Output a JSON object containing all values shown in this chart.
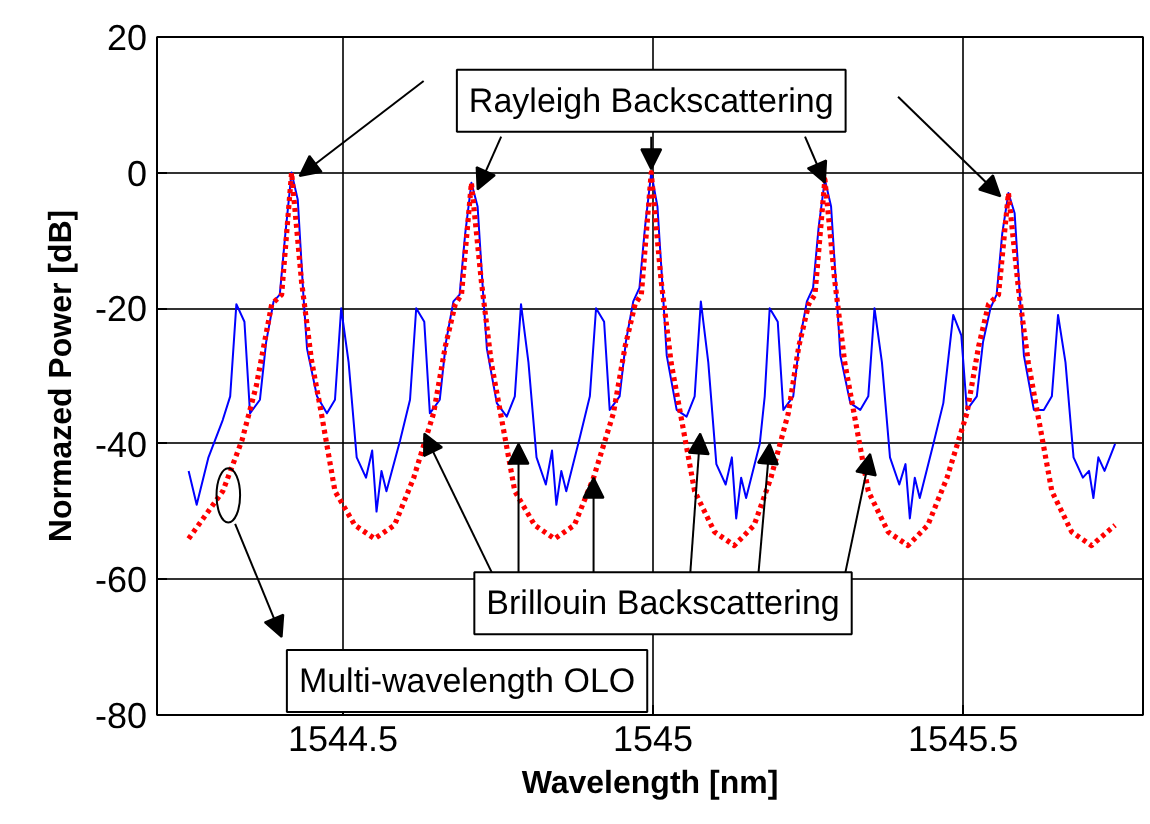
{
  "chart_data": {
    "type": "line",
    "xlabel": "Wavelength [nm]",
    "ylabel": "Normazed Power [dB]",
    "xlim": [
      1544.2,
      1545.79
    ],
    "ylim": [
      -80,
      20
    ],
    "xticks": [
      1544.5,
      1545,
      1545.5
    ],
    "yticks": [
      -80,
      -60,
      -40,
      -20,
      0,
      20
    ],
    "grid": true,
    "annotations": [
      {
        "text": "Rayleigh Backscattering",
        "x": 1544.997,
        "y": 0
      },
      {
        "text": "Brillouin Backscattering",
        "x": 1544.904,
        "y": -45
      },
      "Multi-wavelength OLO"
    ],
    "series": [
      {
        "color": "#0000ff",
        "line_style": "solid",
        "x": [
          1544.251,
          1544.264,
          1544.283,
          1544.306,
          1544.318,
          1544.328,
          1544.341,
          1544.35,
          1544.366,
          1544.376,
          1544.388,
          1544.398,
          1544.407,
          1544.417,
          1544.427,
          1544.436,
          1544.442,
          1544.458,
          1544.474,
          1544.487,
          1544.497,
          1544.509,
          1544.522,
          1544.537,
          1544.547,
          1544.554,
          1544.562,
          1544.57,
          1544.592,
          1544.608,
          1544.618,
          1544.631,
          1544.64,
          1544.656,
          1544.666,
          1544.678,
          1544.688,
          1544.697,
          1544.707,
          1544.717,
          1544.726,
          1544.732,
          1544.748,
          1544.764,
          1544.777,
          1544.787,
          1544.799,
          1544.812,
          1544.827,
          1544.837,
          1544.844,
          1544.852,
          1544.86,
          1544.882,
          1544.898,
          1544.908,
          1544.921,
          1544.93,
          1544.946,
          1544.956,
          1544.968,
          1544.978,
          1544.987,
          1544.997,
          1545.007,
          1545.016,
          1545.022,
          1545.038,
          1545.054,
          1545.067,
          1545.077,
          1545.089,
          1545.102,
          1545.117,
          1545.127,
          1545.134,
          1545.142,
          1545.15,
          1545.172,
          1545.18,
          1545.188,
          1545.201,
          1545.21,
          1545.226,
          1545.236,
          1545.248,
          1545.258,
          1545.267,
          1545.277,
          1545.287,
          1545.296,
          1545.302,
          1545.318,
          1545.334,
          1545.347,
          1545.357,
          1545.369,
          1545.382,
          1545.397,
          1545.407,
          1545.414,
          1545.422,
          1545.43,
          1545.452,
          1545.468,
          1545.484,
          1545.497,
          1545.506,
          1545.522,
          1545.532,
          1545.544,
          1545.554,
          1545.563,
          1545.573,
          1545.583,
          1545.592,
          1545.598,
          1545.614,
          1545.63,
          1545.643,
          1545.653,
          1545.665,
          1545.678,
          1545.693,
          1545.703,
          1545.71,
          1545.718,
          1545.728,
          1545.745
        ],
        "values": [
          -44,
          -49,
          -42,
          -36.5,
          -33,
          -19.4,
          -22,
          -35.5,
          -33.5,
          -25,
          -19,
          -18,
          -9,
          0,
          -4,
          -18,
          -26,
          -33,
          -35.5,
          -33.5,
          -20,
          -28,
          -42,
          -45,
          -41,
          -50,
          -44,
          -47,
          -39.5,
          -33.5,
          -20,
          -22,
          -35.5,
          -33.5,
          -25,
          -19,
          -18,
          -9,
          -1.5,
          -5,
          -18,
          -26,
          -34,
          -36,
          -33,
          -19.4,
          -28,
          -42,
          -46,
          -41,
          -49,
          -44,
          -47,
          -39,
          -33,
          -20,
          -22,
          -35,
          -33,
          -25,
          -19,
          -17,
          -8,
          0,
          -5,
          -18,
          -27,
          -35,
          -36,
          -33,
          -19,
          -28,
          -43,
          -46,
          -42,
          -51,
          -45,
          -48,
          -40,
          -33,
          -20,
          -22,
          -35,
          -33,
          -25,
          -19,
          -17,
          -8,
          -1,
          -5,
          -18,
          -27,
          -34,
          -35,
          -33,
          -20,
          -28,
          -42,
          -46,
          -43,
          -51,
          -45,
          -48,
          -40,
          -34,
          -21,
          -24,
          -35,
          -33,
          -25,
          -20,
          -18,
          -9,
          -3,
          -6,
          -19,
          -27,
          -35,
          -35,
          -33,
          -21,
          -28,
          -42,
          -45,
          -44,
          -48,
          -42,
          -44,
          -40
        ]
      },
      {
        "color": "#ff0000",
        "line_style": "dotted",
        "x": [
          1544.251,
          1544.306,
          1544.337,
          1544.36,
          1544.385,
          1544.401,
          1544.417,
          1544.433,
          1544.449,
          1544.465,
          1544.487,
          1544.519,
          1544.551,
          1544.583,
          1544.614,
          1544.646,
          1544.665,
          1544.681,
          1544.691,
          1544.707,
          1544.723,
          1544.739,
          1544.755,
          1544.777,
          1544.809,
          1544.841,
          1544.873,
          1544.904,
          1544.936,
          1544.955,
          1544.971,
          1544.981,
          1544.997,
          1545.013,
          1545.029,
          1545.045,
          1545.067,
          1545.099,
          1545.131,
          1545.163,
          1545.19,
          1545.218,
          1545.235,
          1545.251,
          1545.261,
          1545.277,
          1545.293,
          1545.309,
          1545.325,
          1545.347,
          1545.379,
          1545.411,
          1545.443,
          1545.474,
          1545.506,
          1545.525,
          1545.541,
          1545.557,
          1545.573,
          1545.589,
          1545.605,
          1545.621,
          1545.643,
          1545.675,
          1545.707,
          1545.745
        ],
        "values": [
          -54,
          -47,
          -39.5,
          -31.5,
          -19.4,
          -18,
          0,
          -16,
          -27.6,
          -35.5,
          -47,
          -52,
          -54,
          -52,
          -45,
          -35.5,
          -25.6,
          -19.4,
          -18,
          -1.5,
          -16,
          -28,
          -36,
          -47,
          -52,
          -54,
          -52,
          -45,
          -35.5,
          -25.6,
          -19.4,
          -18,
          0,
          -16,
          -28,
          -36,
          -47,
          -53,
          -55,
          -52,
          -45,
          -35.5,
          -25.6,
          -19.4,
          -18,
          -1,
          -16,
          -28,
          -36,
          -47,
          -53,
          -55,
          -52,
          -45,
          -35.5,
          -25.6,
          -19.4,
          -18,
          -3,
          -17,
          -28,
          -36,
          -47,
          -53,
          -55,
          -52
        ]
      }
    ]
  }
}
